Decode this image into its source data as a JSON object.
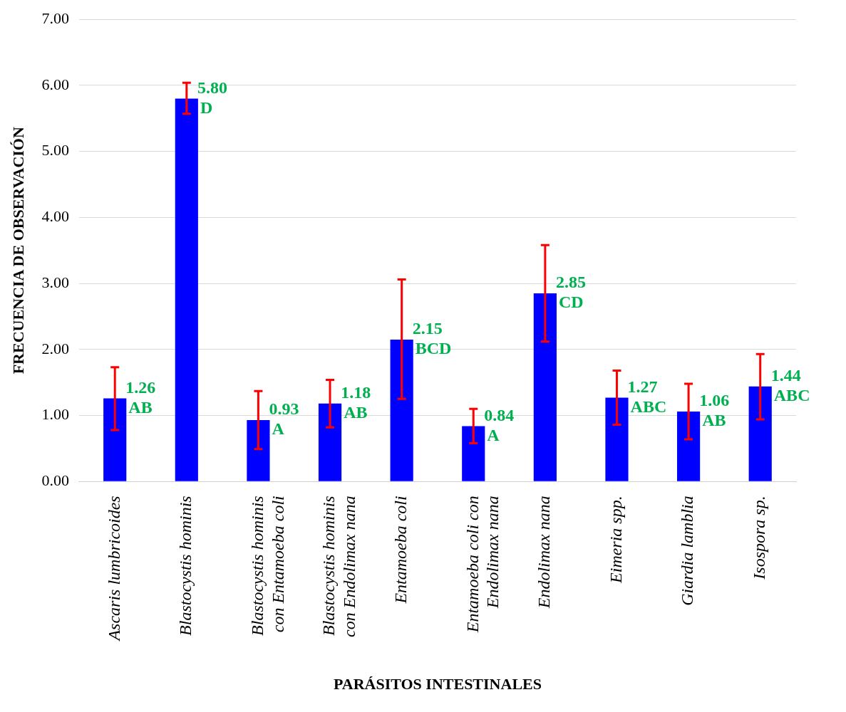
{
  "chart_data": {
    "type": "bar",
    "xlabel": "PARÁSITOS INTESTINALES",
    "ylabel": "FRECUENCIA DE OBSERVACIÓN",
    "categories": [
      "Ascaris lumbricoides",
      "Blastocystis hominis",
      "Blastocystis hominis con Entamoeba coli",
      "Blastocystis hominis con Endolimax nana",
      "Entamoeba coli",
      "Entamoeba coli con Endolimax nana",
      "Endolimax nana",
      "Eimeria spp.",
      "Giardia lamblia",
      "Isospora sp."
    ],
    "values": [
      1.26,
      5.8,
      0.93,
      1.18,
      2.15,
      0.84,
      2.85,
      1.27,
      1.06,
      1.44
    ],
    "errors": [
      [
        0.78,
        1.73
      ],
      [
        5.57,
        6.04
      ],
      [
        0.49,
        1.37
      ],
      [
        0.82,
        1.54
      ],
      [
        1.25,
        3.06
      ],
      [
        0.58,
        1.1
      ],
      [
        2.12,
        3.58
      ],
      [
        0.86,
        1.68
      ],
      [
        0.64,
        1.48
      ],
      [
        0.94,
        1.93
      ]
    ],
    "value_labels": [
      "1.26",
      "5.80",
      "0.93",
      "1.18",
      "2.15",
      "0.84",
      "2.85",
      "1.27",
      "1.06",
      "1.44"
    ],
    "annotations": [
      {
        "text": "AB",
        "x": "Ascaris lumbricoides",
        "y": 1.26
      },
      {
        "text": "D",
        "x": "Blastocystis hominis",
        "y": 5.8
      },
      {
        "text": "A",
        "x": "Blastocystis hominis con Entamoeba coli",
        "y": 0.93
      },
      {
        "text": "AB",
        "x": "Blastocystis hominis con Endolimax nana",
        "y": 1.18
      },
      {
        "text": "BCD",
        "x": "Entamoeba coli",
        "y": 2.15
      },
      {
        "text": "A",
        "x": "Entamoeba coli con Endolimax nana",
        "y": 0.84
      },
      {
        "text": "CD",
        "x": "Endolimax nana",
        "y": 2.85
      },
      {
        "text": "ABC",
        "x": "Eimeria spp.",
        "y": 1.27
      },
      {
        "text": "AB",
        "x": "Giardia lamblia",
        "y": 1.06
      },
      {
        "text": "ABC",
        "x": "Isospora sp.",
        "y": 1.44
      }
    ],
    "color": "#0000ff",
    "ylim": [
      0,
      7
    ],
    "yticks": [
      {
        "value": 0,
        "label": "0.00"
      },
      {
        "value": 1,
        "label": "1.00"
      },
      {
        "value": 2,
        "label": "2.00"
      },
      {
        "value": 3,
        "label": "3.00"
      },
      {
        "value": 4,
        "label": "4.00"
      },
      {
        "value": 5,
        "label": "5.00"
      },
      {
        "value": 6,
        "label": "6.00"
      },
      {
        "value": 7,
        "label": "7.00"
      }
    ],
    "grid": "y",
    "legend": false
  }
}
